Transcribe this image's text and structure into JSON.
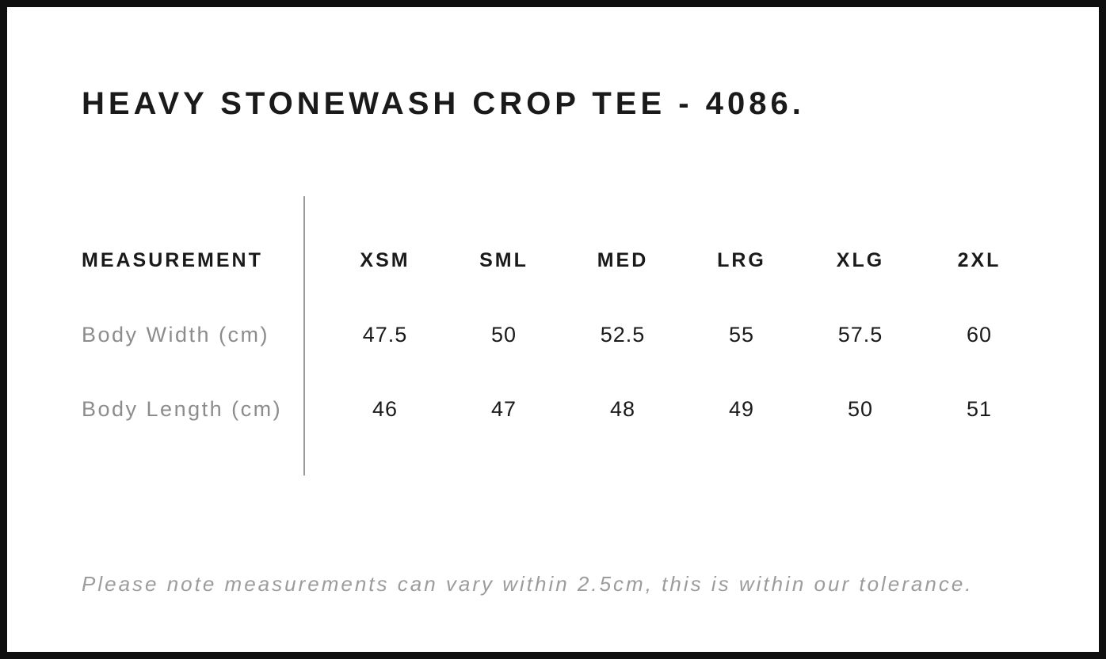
{
  "title": "HEAVY STONEWASH CROP TEE - 4086.",
  "note": "Please note measurements can vary within 2.5cm, this is within our tolerance.",
  "chart_data": {
    "type": "table",
    "columns": [
      "MEASUREMENT",
      "XSM",
      "SML",
      "MED",
      "LRG",
      "XLG",
      "2XL"
    ],
    "rows": [
      {
        "label": "Body Width (cm)",
        "values": [
          "47.5",
          "50",
          "52.5",
          "55",
          "57.5",
          "60"
        ]
      },
      {
        "label": "Body Length (cm)",
        "values": [
          "46",
          "47",
          "48",
          "49",
          "50",
          "51"
        ]
      }
    ]
  },
  "colors": {
    "frame_border": "#0f0f0f",
    "text_primary": "#1a1a1a",
    "text_muted": "#8c8c8c",
    "divider": "#9a9a9a",
    "note_text": "#9c9c9c",
    "background": "#ffffff"
  }
}
